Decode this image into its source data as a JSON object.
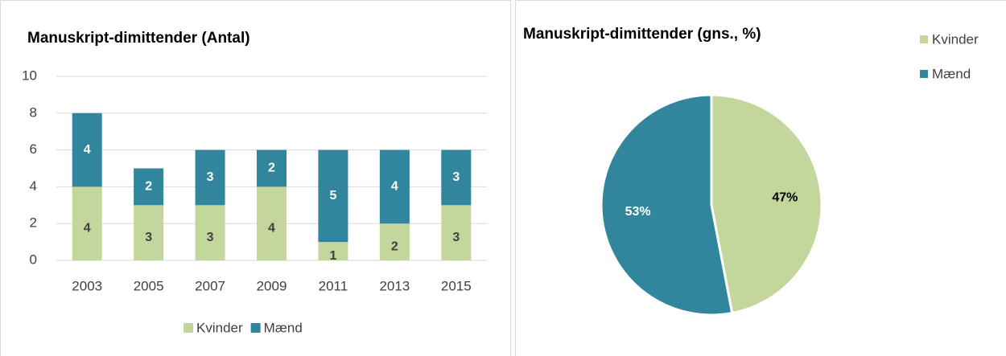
{
  "chart_data": [
    {
      "type": "bar",
      "stacked": true,
      "title": "Manuskript-dimittender (Antal)",
      "categories": [
        "2003",
        "2005",
        "2007",
        "2009",
        "2011",
        "2013",
        "2015"
      ],
      "series": [
        {
          "name": "Kvinder",
          "color": "#c3d69b",
          "values": [
            4,
            3,
            3,
            4,
            1,
            2,
            3
          ]
        },
        {
          "name": "Mænd",
          "color": "#31859c",
          "values": [
            4,
            2,
            3,
            2,
            5,
            4,
            3
          ]
        }
      ],
      "ylim": [
        0,
        10
      ],
      "yticks": [
        0,
        2,
        4,
        6,
        8,
        10
      ],
      "grid": true,
      "legend": "bottom"
    },
    {
      "type": "pie",
      "title": "Manuskript-dimittender (gns., %)",
      "categories": [
        "Kvinder",
        "Mænd"
      ],
      "values": [
        47,
        53
      ],
      "value_labels": [
        "47%",
        "53%"
      ],
      "colors": [
        "#c3d69b",
        "#31859c"
      ],
      "legend": "top-right"
    }
  ]
}
